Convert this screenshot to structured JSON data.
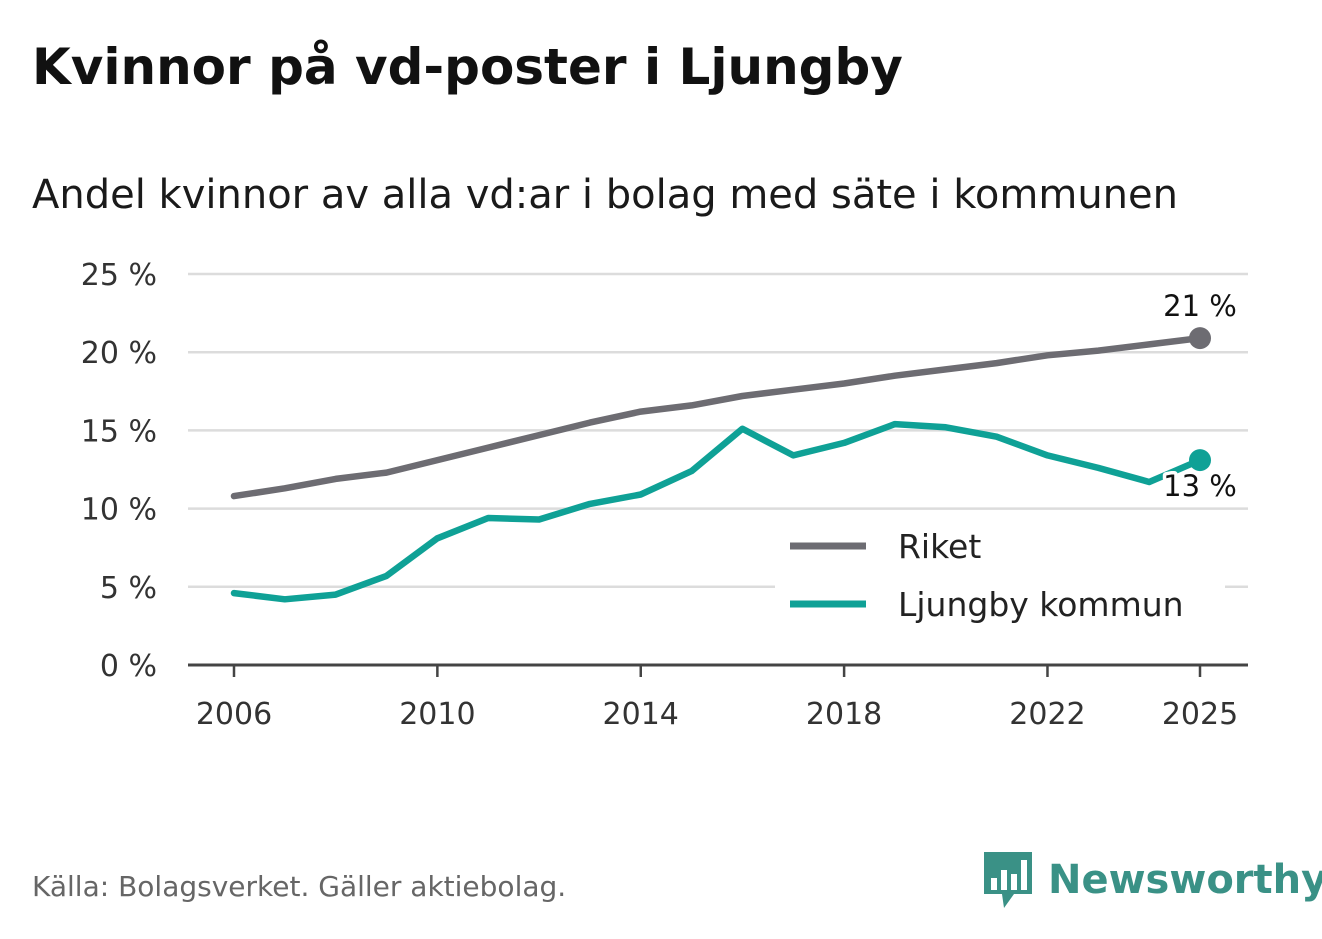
{
  "title": "Kvinnor på vd-poster i Ljungby",
  "subtitle": "Andel kvinnor av alla vd:ar i bolag med säte i kommunen",
  "source": "Källa: Bolagsverket. Gäller aktiebolag.",
  "brand": {
    "name": "Newsworthy",
    "color": "#3a9186"
  },
  "chart_data": {
    "type": "line",
    "title": "Kvinnor på vd-poster i Ljungby",
    "subtitle": "Andel kvinnor av alla vd:ar i bolag med säte i kommunen",
    "xlabel": "",
    "ylabel": "",
    "x": [
      2006,
      2007,
      2008,
      2009,
      2010,
      2011,
      2012,
      2013,
      2014,
      2015,
      2016,
      2017,
      2018,
      2019,
      2020,
      2021,
      2022,
      2023,
      2024,
      2025
    ],
    "xlim": [
      2006,
      2025
    ],
    "ylim": [
      0,
      25
    ],
    "xticks": [
      2006,
      2010,
      2014,
      2018,
      2022,
      2025
    ],
    "xtick_labels": [
      "2006",
      "2010",
      "2014",
      "2018",
      "2022",
      "2025"
    ],
    "yticks": [
      0,
      5,
      10,
      15,
      20,
      25
    ],
    "ytick_labels": [
      "0 %",
      "5 %",
      "10 %",
      "15 %",
      "20 %",
      "25 %"
    ],
    "grid": true,
    "legend_position": "bottom-right",
    "series": [
      {
        "name": "Riket",
        "color": "#6d6c72",
        "values": [
          10.8,
          11.3,
          11.9,
          12.3,
          13.1,
          13.9,
          14.7,
          15.5,
          16.2,
          16.6,
          17.2,
          17.6,
          18.0,
          18.5,
          18.9,
          19.3,
          19.8,
          20.1,
          20.5,
          20.9
        ],
        "end_label": "21 %",
        "end_label_placement": "above"
      },
      {
        "name": "Ljungby kommun",
        "color": "#0fa196",
        "values": [
          4.6,
          4.2,
          4.5,
          5.7,
          8.1,
          9.4,
          9.3,
          10.3,
          10.9,
          12.4,
          15.1,
          13.4,
          14.2,
          15.4,
          15.2,
          14.6,
          13.4,
          12.6,
          11.7,
          13.1
        ],
        "end_label": "13 %",
        "end_label_placement": "below"
      }
    ]
  }
}
